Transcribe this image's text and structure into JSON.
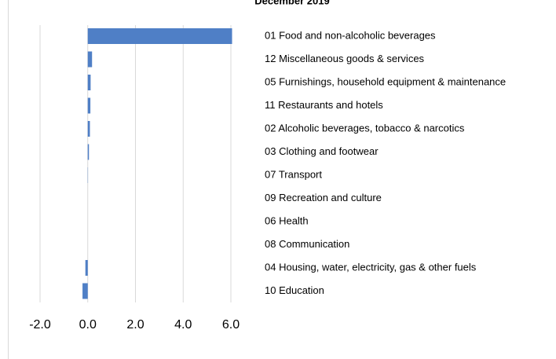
{
  "chart_data": {
    "type": "barh",
    "title": "December 2019",
    "categories": [
      "01 Food and non-alcoholic beverages",
      "12 Miscellaneous goods & services",
      "05 Furnishings, household equipment & maintenance",
      "11 Restaurants and hotels",
      "02 Alcoholic beverages, tobacco & narcotics",
      "03 Clothing and footwear",
      "07 Transport",
      "09 Recreation and culture",
      "06 Health",
      "08 Communication",
      "04 Housing, water, electricity, gas & other fuels",
      "10 Education"
    ],
    "values": [
      6.05,
      0.18,
      0.12,
      0.11,
      0.09,
      0.05,
      0.01,
      0,
      0,
      0,
      -0.1,
      -0.22
    ],
    "color": "#4f7fc6",
    "xlim": [
      -2,
      6
    ],
    "xticks": [
      {
        "value": -2,
        "label": "-2.0"
      },
      {
        "value": 0,
        "label": "0.0"
      },
      {
        "value": 2,
        "label": "2.0"
      },
      {
        "value": 4,
        "label": "4.0"
      },
      {
        "value": 6,
        "label": "6.0"
      }
    ],
    "grid": true
  }
}
